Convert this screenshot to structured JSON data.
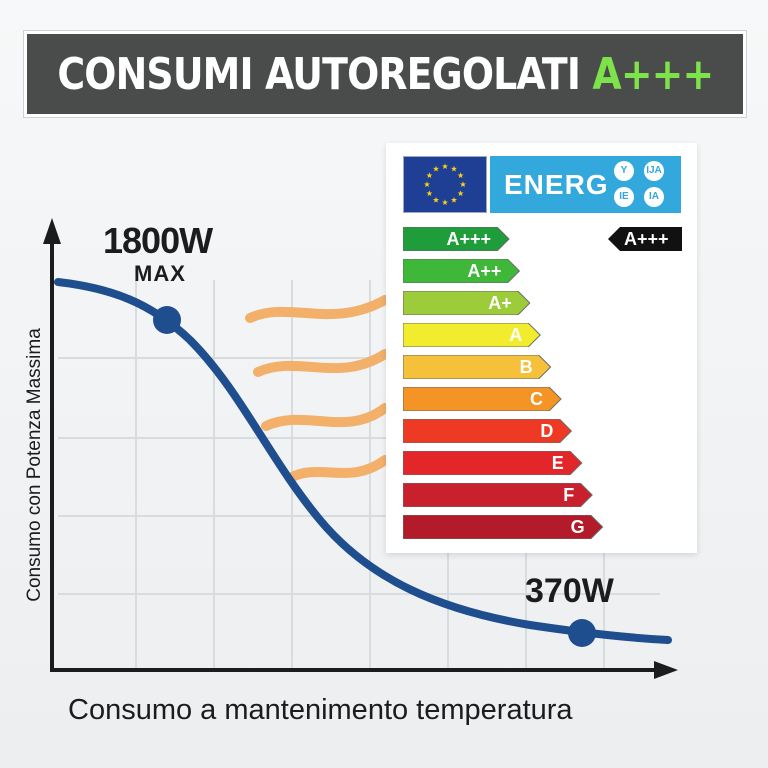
{
  "header": {
    "title_main": "CONSUMI AUTOREGOLATI",
    "title_accent": "A+++"
  },
  "chart_data": {
    "type": "line",
    "title": "",
    "xlabel": "Consumo a mantenimento temperatura",
    "ylabel": "Consumo con Potenza Massima",
    "annotations": [
      {
        "label": "1800W",
        "sublabel": "MAX",
        "value": 1800,
        "unit": "W"
      },
      {
        "label": "370W",
        "value": 370,
        "unit": "W"
      }
    ],
    "trend": "decreasing",
    "grid": true
  },
  "energy_label": {
    "header_text": "ENERG",
    "language_codes": [
      "Y",
      "IJA",
      "IE",
      "IA"
    ],
    "rating": "A+++",
    "classes": [
      {
        "label": "A+++",
        "color": "#1f9d3a"
      },
      {
        "label": "A++",
        "color": "#3fb83a"
      },
      {
        "label": "A+",
        "color": "#9ccc3a"
      },
      {
        "label": "A",
        "color": "#f2ec2f"
      },
      {
        "label": "B",
        "color": "#f6c13a"
      },
      {
        "label": "C",
        "color": "#f39424"
      },
      {
        "label": "D",
        "color": "#ee3a25"
      },
      {
        "label": "E",
        "color": "#e2262a"
      },
      {
        "label": "F",
        "color": "#c9202d"
      },
      {
        "label": "G",
        "color": "#b31b2b"
      }
    ]
  }
}
